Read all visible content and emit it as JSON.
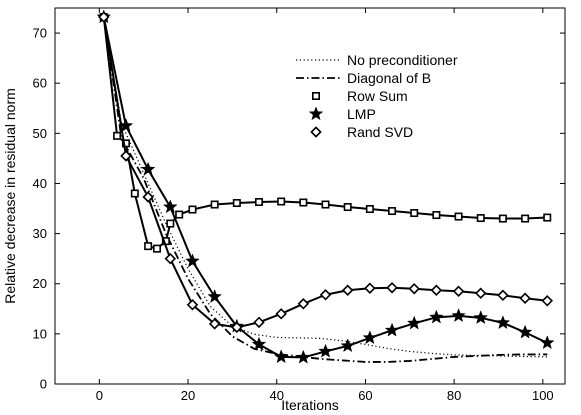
{
  "chart_data": {
    "type": "line",
    "title": "",
    "xlabel": "Iterations",
    "ylabel": "Relative decrease in residual norm",
    "xlim": [
      -10,
      105
    ],
    "ylim": [
      0,
      75
    ],
    "xticks": [
      0,
      20,
      40,
      60,
      80,
      100
    ],
    "yticks": [
      0,
      10,
      20,
      30,
      40,
      50,
      60,
      70
    ],
    "grid": false,
    "legend_position": "top-right",
    "series": [
      {
        "name": "No preconditioner",
        "style": "dotted",
        "marker": "none",
        "x": [
          1,
          5,
          10,
          15,
          20,
          25,
          30,
          35,
          40,
          45,
          50,
          55,
          60,
          65,
          70,
          75,
          80,
          85,
          90,
          95,
          101
        ],
        "y": [
          73.2,
          52,
          42,
          32,
          23,
          15.5,
          11.5,
          9.9,
          9.3,
          9.2,
          9.1,
          8.6,
          7.9,
          7.1,
          6.5,
          6.1,
          5.8,
          5.7,
          5.6,
          5.5,
          5.4
        ]
      },
      {
        "name": "Diagonal of B",
        "style": "dashdot",
        "marker": "none",
        "x": [
          1,
          5,
          10,
          15,
          20,
          25,
          30,
          35,
          40,
          45,
          50,
          55,
          60,
          65,
          70,
          75,
          80,
          85,
          90,
          95,
          101
        ],
        "y": [
          73.2,
          49,
          41,
          30,
          21,
          14,
          9.5,
          7,
          6,
          5.5,
          5,
          4.7,
          4.4,
          4.4,
          4.6,
          5,
          5.4,
          5.6,
          5.8,
          5.9,
          5.9
        ]
      },
      {
        "name": "Row Sum",
        "style": "solid",
        "marker": "square",
        "x": [
          1,
          4,
          6,
          8,
          11,
          13,
          15,
          16,
          18,
          21,
          26,
          31,
          36,
          41,
          46,
          51,
          56,
          61,
          66,
          71,
          76,
          81,
          86,
          91,
          96,
          101
        ],
        "y": [
          73.2,
          49.5,
          48,
          38,
          27.5,
          27,
          28.5,
          32,
          33.8,
          34.8,
          35.8,
          36.1,
          36.3,
          36.4,
          36.2,
          35.8,
          35.3,
          34.9,
          34.5,
          34.1,
          33.7,
          33.4,
          33.1,
          33,
          33,
          33.2
        ]
      },
      {
        "name": "LMP",
        "style": "solid",
        "marker": "star",
        "x": [
          1,
          6,
          11,
          16,
          21,
          26,
          31,
          36,
          41,
          46,
          51,
          56,
          61,
          66,
          71,
          76,
          81,
          86,
          91,
          96,
          101
        ],
        "y": [
          73.2,
          51.5,
          42.8,
          35.3,
          24.5,
          17.4,
          11.5,
          7.9,
          5.4,
          5.3,
          6.5,
          7.6,
          9.2,
          10.7,
          12.1,
          13.3,
          13.6,
          13.2,
          12.2,
          10.3,
          8.2
        ]
      },
      {
        "name": "Rand SVD",
        "style": "solid",
        "marker": "diamond",
        "x": [
          1,
          6,
          11,
          16,
          21,
          26,
          31,
          36,
          41,
          46,
          51,
          56,
          61,
          66,
          71,
          76,
          81,
          86,
          91,
          96,
          101
        ],
        "y": [
          73.2,
          45.5,
          37.3,
          25,
          15.8,
          12,
          11.3,
          12.3,
          14,
          16,
          17.8,
          18.7,
          19.1,
          19.2,
          19,
          18.7,
          18.5,
          18.1,
          17.7,
          17.1,
          16.6
        ]
      }
    ]
  }
}
